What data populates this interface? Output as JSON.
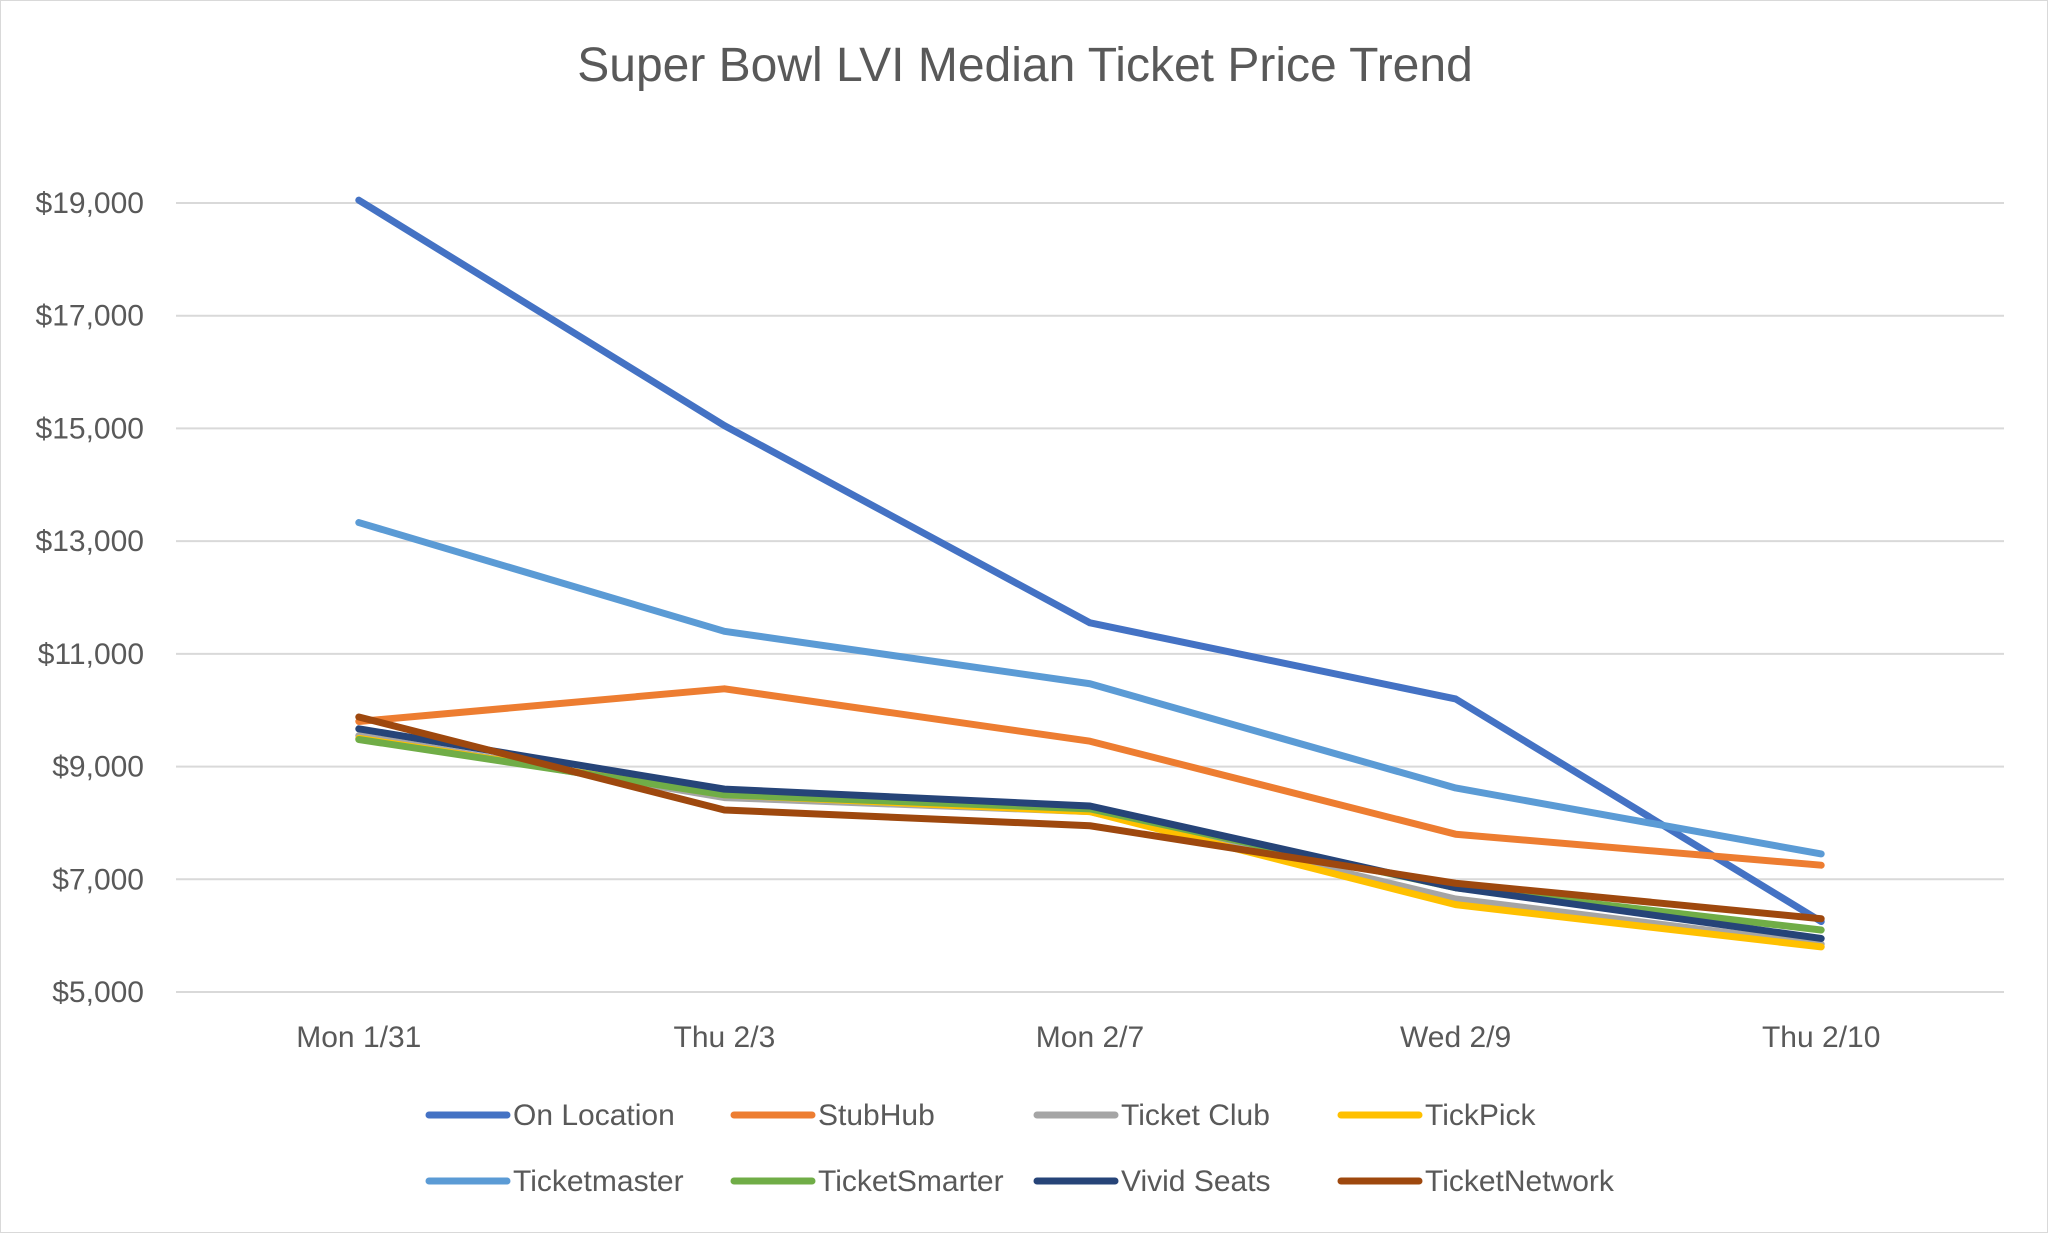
{
  "chart_data": {
    "type": "line",
    "title": "Super Bowl LVI Median Ticket Price Trend",
    "xlabel": "",
    "ylabel": "",
    "categories": [
      "Mon 1/31",
      "Thu 2/3",
      "Mon 2/7",
      "Wed 2/9",
      "Thu 2/10"
    ],
    "ylim": [
      5000,
      19000
    ],
    "yticks": [
      5000,
      7000,
      9000,
      11000,
      13000,
      15000,
      17000,
      19000
    ],
    "ytick_labels": [
      "$5,000",
      "$7,000",
      "$9,000",
      "$11,000",
      "$13,000",
      "$15,000",
      "$17,000",
      "$19,000"
    ],
    "grid": true,
    "legend_position": "bottom",
    "series": [
      {
        "name": "On Location",
        "color": "#4472C4",
        "values": [
          19050,
          15050,
          11550,
          10200,
          6250
        ]
      },
      {
        "name": "StubHub",
        "color": "#ED7D31",
        "values": [
          9800,
          10380,
          9450,
          7800,
          7250
        ]
      },
      {
        "name": "Ticket Club",
        "color": "#A5A5A5",
        "values": [
          9550,
          8450,
          8200,
          6650,
          5850
        ]
      },
      {
        "name": "TickPick",
        "color": "#FFC000",
        "values": [
          9500,
          8500,
          8200,
          6550,
          5800
        ]
      },
      {
        "name": "Ticketmaster",
        "color": "#5B9BD5",
        "values": [
          13330,
          11400,
          10470,
          8620,
          7450
        ]
      },
      {
        "name": "TicketSmarter",
        "color": "#70AD47",
        "values": [
          9480,
          8500,
          8250,
          6850,
          6100
        ]
      },
      {
        "name": "Vivid Seats",
        "color": "#264478",
        "values": [
          9670,
          8600,
          8300,
          6850,
          5950
        ]
      },
      {
        "name": "TicketNetwork",
        "color": "#9E480E",
        "values": [
          9880,
          8230,
          7950,
          6930,
          6300
        ]
      }
    ]
  }
}
